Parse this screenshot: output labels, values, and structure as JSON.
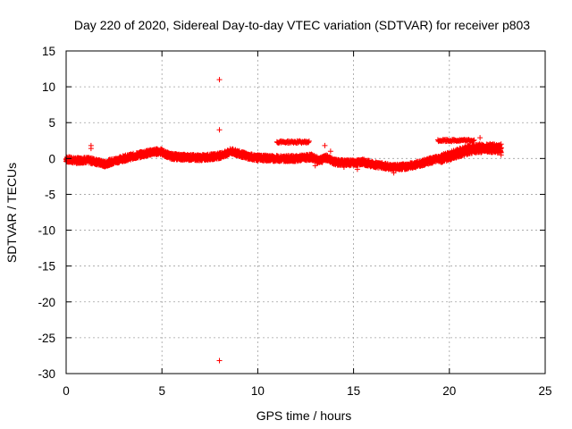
{
  "chart_data": {
    "type": "scatter",
    "title": "Day 220 of 2020, Sidereal Day-to-day VTEC variation (SDTVAR) for receiver p803",
    "xlabel": "GPS time / hours",
    "ylabel": "SDTVAR / TECUs",
    "xlim": [
      0,
      25
    ],
    "ylim": [
      -30,
      15
    ],
    "xticks": [
      "0",
      "5",
      "10",
      "15",
      "20",
      "25"
    ],
    "yticks": [
      "15",
      "10",
      "5",
      "0",
      "-5",
      "-10",
      "-15",
      "-20",
      "-25",
      "-30"
    ],
    "grid": true,
    "marker": "plus",
    "color": "#ff0000",
    "series": [
      {
        "name": "SDTVAR",
        "trend": [
          [
            0.0,
            -0.1
          ],
          [
            0.5,
            -0.3
          ],
          [
            1.0,
            -0.2
          ],
          [
            1.5,
            -0.4
          ],
          [
            2.0,
            -0.8
          ],
          [
            2.3,
            -0.5
          ],
          [
            3.0,
            0.0
          ],
          [
            3.5,
            0.3
          ],
          [
            4.0,
            0.6
          ],
          [
            4.5,
            0.9
          ],
          [
            4.9,
            1.0
          ],
          [
            5.2,
            0.6
          ],
          [
            5.5,
            0.3
          ],
          [
            6.0,
            0.2
          ],
          [
            7.0,
            0.1
          ],
          [
            7.5,
            0.2
          ],
          [
            8.0,
            0.4
          ],
          [
            8.3,
            0.6
          ],
          [
            8.6,
            1.0
          ],
          [
            9.0,
            0.7
          ],
          [
            9.5,
            0.3
          ],
          [
            10.0,
            0.1
          ],
          [
            11.0,
            0.0
          ],
          [
            12.0,
            0.0
          ],
          [
            12.8,
            0.2
          ],
          [
            13.2,
            -0.3
          ],
          [
            13.6,
            0.1
          ],
          [
            14.0,
            -0.5
          ],
          [
            14.5,
            -0.6
          ],
          [
            15.0,
            -0.6
          ],
          [
            15.5,
            -0.5
          ],
          [
            16.0,
            -0.8
          ],
          [
            16.5,
            -1.0
          ],
          [
            17.0,
            -1.2
          ],
          [
            17.5,
            -1.2
          ],
          [
            18.0,
            -1.0
          ],
          [
            18.5,
            -0.7
          ],
          [
            19.0,
            -0.3
          ],
          [
            19.5,
            0.0
          ],
          [
            20.0,
            0.3
          ],
          [
            20.5,
            0.8
          ],
          [
            21.0,
            1.2
          ],
          [
            21.5,
            1.4
          ],
          [
            22.0,
            1.5
          ],
          [
            22.7,
            1.3
          ]
        ],
        "bands": [
          {
            "x": [
              11.0,
              12.7
            ],
            "y": 2.3
          },
          {
            "x": [
              19.4,
              21.3
            ],
            "y": 2.5
          }
        ],
        "outliers": [
          [
            8.0,
            11.0
          ],
          [
            8.0,
            4.0
          ],
          [
            8.0,
            -28.2
          ],
          [
            1.3,
            1.8
          ],
          [
            1.3,
            1.4
          ],
          [
            2.1,
            -1.0
          ],
          [
            13.0,
            -1.0
          ],
          [
            13.5,
            1.8
          ],
          [
            13.8,
            1.0
          ],
          [
            14.5,
            -1.2
          ],
          [
            15.2,
            -1.5
          ],
          [
            17.1,
            -2.0
          ],
          [
            21.6,
            2.9
          ],
          [
            22.7,
            2.0
          ],
          [
            22.7,
            0.5
          ]
        ]
      }
    ]
  }
}
